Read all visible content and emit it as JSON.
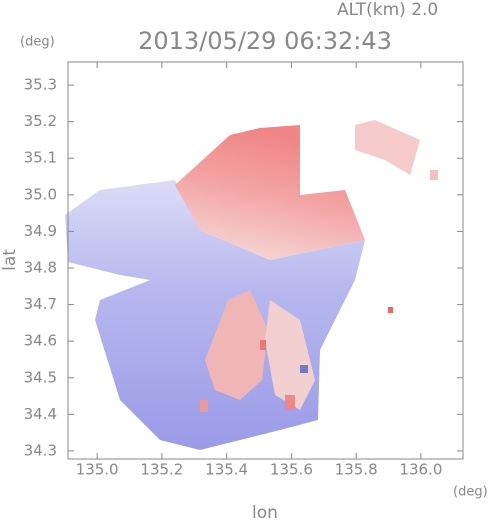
{
  "chart_data": {
    "type": "radar-map",
    "title": "2013/05/29 06:32:43",
    "altitude_label": "ALT(km) 2.0",
    "x_label": "lon",
    "y_label": "lat",
    "x_unit": "(deg)",
    "y_unit": "(deg)",
    "xlim": [
      134.91,
      136.13
    ],
    "ylim": [
      34.278,
      35.363
    ],
    "xticks": [
      {
        "value": 135.0,
        "label": "135.0"
      },
      135.2,
      135.4,
      135.6,
      135.8,
      {
        "value": 136.0,
        "label": "136.0"
      }
    ],
    "yticks": [
      34.3,
      34.4,
      34.5,
      34.6,
      34.7,
      34.8,
      34.9,
      {
        "value": 35.0,
        "label": "35.0"
      },
      35.1,
      35.2,
      35.3
    ]
  }
}
